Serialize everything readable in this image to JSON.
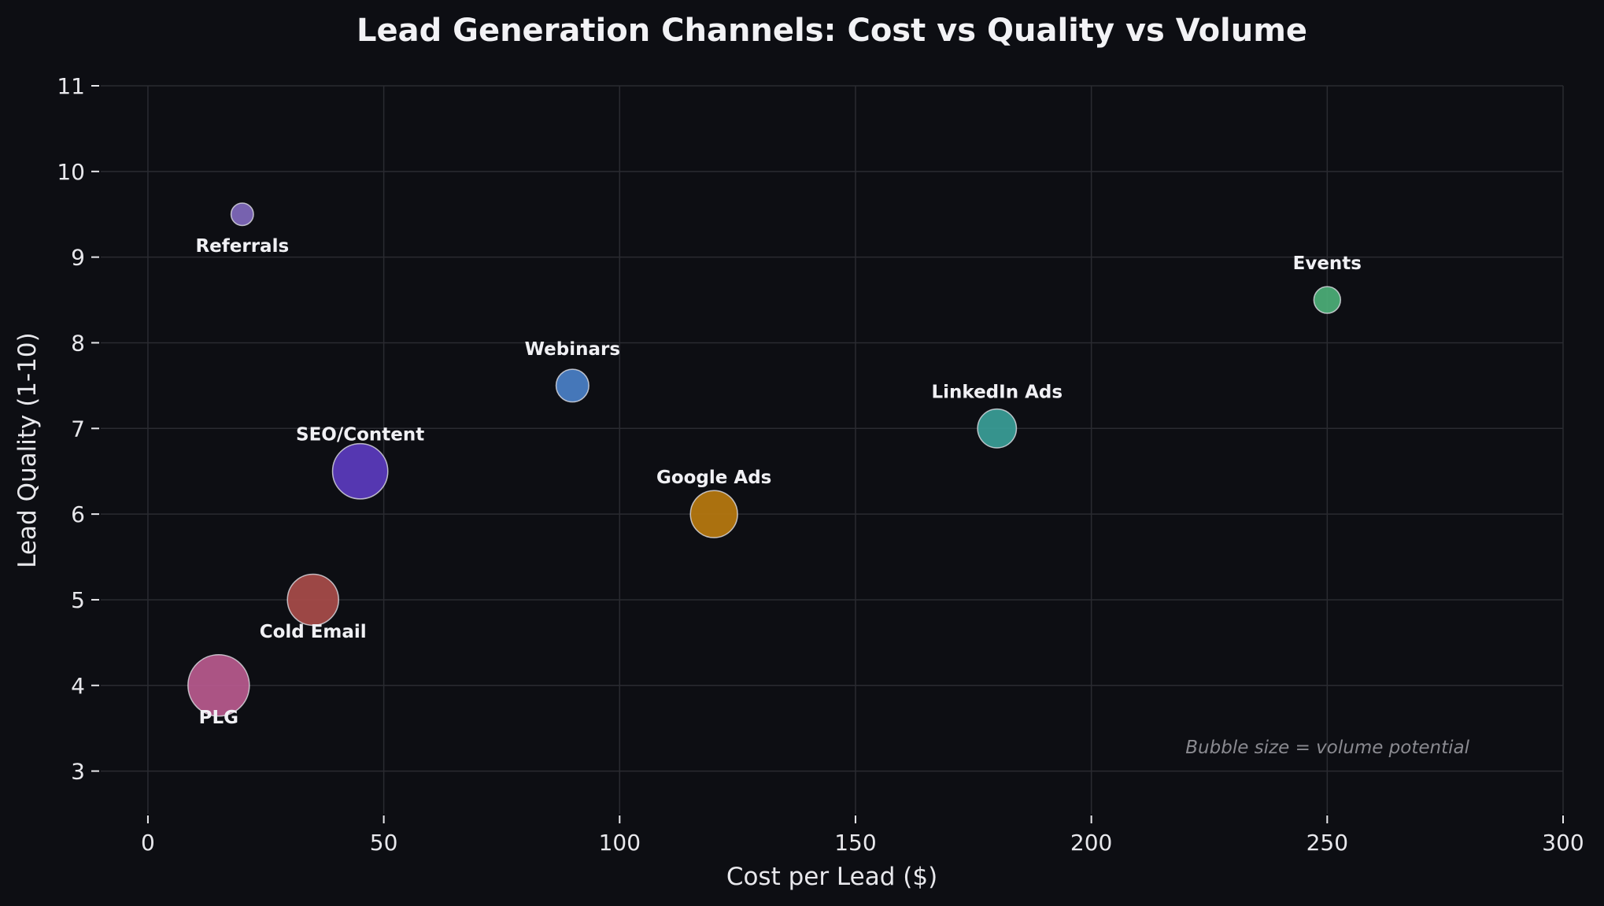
{
  "chart_data": {
    "type": "scatter",
    "title": "Lead Generation Channels: Cost vs Quality vs Volume",
    "xlabel": "Cost per Lead ($)",
    "ylabel": "Lead Quality (1-10)",
    "xlim": [
      -10,
      300
    ],
    "ylim": [
      2.5,
      11
    ],
    "xticks": [
      0,
      50,
      100,
      150,
      200,
      250,
      300
    ],
    "yticks": [
      3,
      4,
      5,
      6,
      7,
      8,
      9,
      10,
      11
    ],
    "grid": true,
    "annotation": "Bubble size = volume potential",
    "points": [
      {
        "name": "Referrals",
        "x": 20,
        "y": 9.5,
        "size": 120,
        "color": "#8069bd",
        "label_pos": "below"
      },
      {
        "name": "Events",
        "x": 250,
        "y": 8.5,
        "size": 170,
        "color": "#4caf78",
        "label_pos": "above"
      },
      {
        "name": "Webinars",
        "x": 90,
        "y": 7.5,
        "size": 256,
        "color": "#4a80c8",
        "label_pos": "above"
      },
      {
        "name": "LinkedIn Ads",
        "x": 180,
        "y": 7.0,
        "size": 360,
        "color": "#3a9e98",
        "label_pos": "above"
      },
      {
        "name": "SEO/Content",
        "x": 45,
        "y": 6.5,
        "size": 730,
        "color": "#5b3bbf",
        "label_pos": "above"
      },
      {
        "name": "Google Ads",
        "x": 120,
        "y": 6.0,
        "size": 530,
        "color": "#b8790f",
        "label_pos": "above"
      },
      {
        "name": "Cold Email",
        "x": 35,
        "y": 5.0,
        "size": 625,
        "color": "#a84c4a",
        "label_pos": "below"
      },
      {
        "name": "PLG",
        "x": 15,
        "y": 4.0,
        "size": 900,
        "color": "#b85a8e",
        "label_pos": "below"
      }
    ]
  }
}
